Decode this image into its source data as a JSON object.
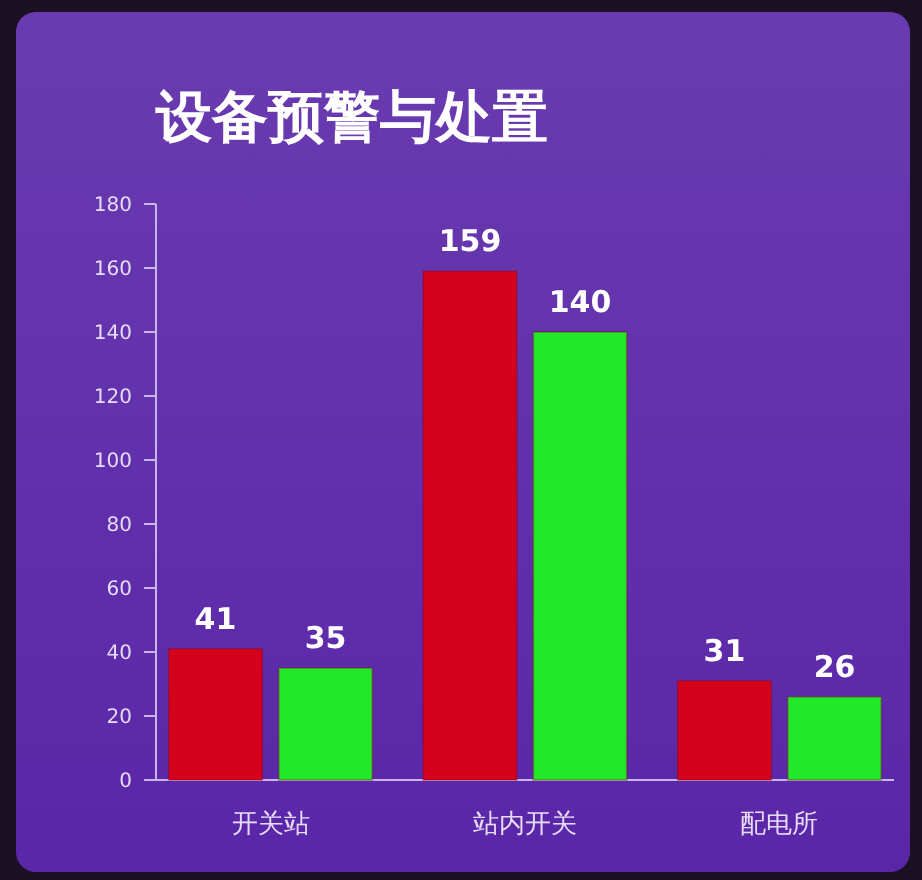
{
  "chart_data": {
    "type": "bar",
    "title": "设备预警与处置",
    "categories": [
      "开关站",
      "站内开关",
      "配电所"
    ],
    "series": [
      {
        "color": "#d4001c",
        "values": [
          41,
          159,
          31
        ]
      },
      {
        "color": "#22e82a",
        "values": [
          35,
          140,
          26
        ]
      }
    ],
    "ylim": [
      0,
      180
    ],
    "yticks": [
      0,
      20,
      40,
      60,
      80,
      100,
      120,
      140,
      160,
      180
    ],
    "grid": false,
    "data_labels": true
  }
}
